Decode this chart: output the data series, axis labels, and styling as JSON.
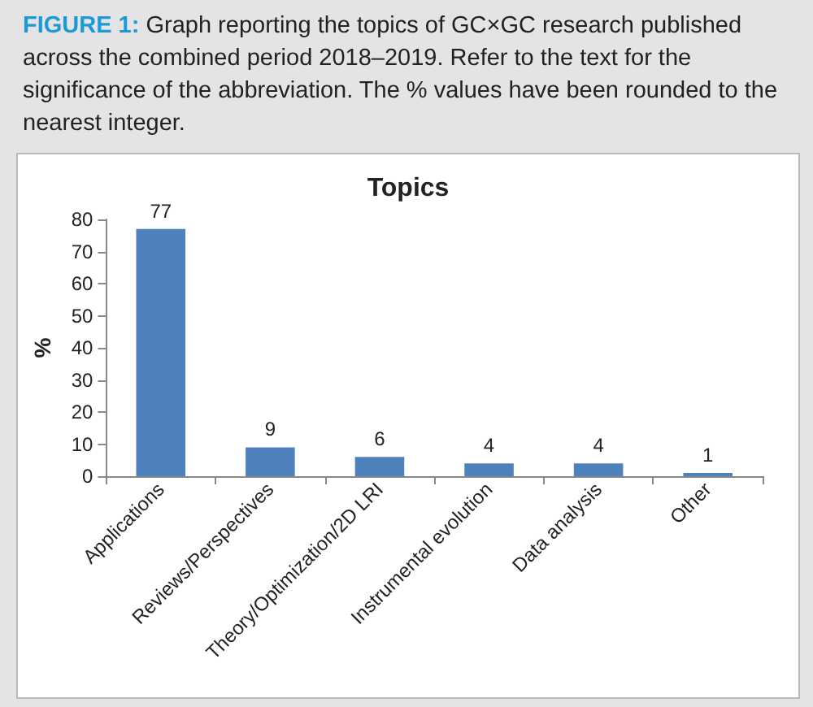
{
  "chart_data": {
    "type": "bar",
    "title": "Topics",
    "ylabel": "%",
    "annotations": [
      "FIGURE 1:",
      "Graph reporting the topics of GC×GC research published across the combined period 2018–2019. Refer to the text for the significance of the abbreviation. The % values have been rounded to the nearest integer."
    ],
    "categories": [
      "Applications",
      "Reviews/Perspectives",
      "Theory/Optimization/2D LRI",
      "Instrumental evolution",
      "Data analysis",
      "Other"
    ],
    "values": [
      77,
      9,
      6,
      4,
      4,
      1
    ],
    "color": "#4f81bd",
    "ylim": [
      0,
      80
    ],
    "yticks": [
      0,
      10,
      20,
      30,
      40,
      50,
      60,
      70,
      80
    ],
    "grid": false,
    "data_labels": true
  }
}
